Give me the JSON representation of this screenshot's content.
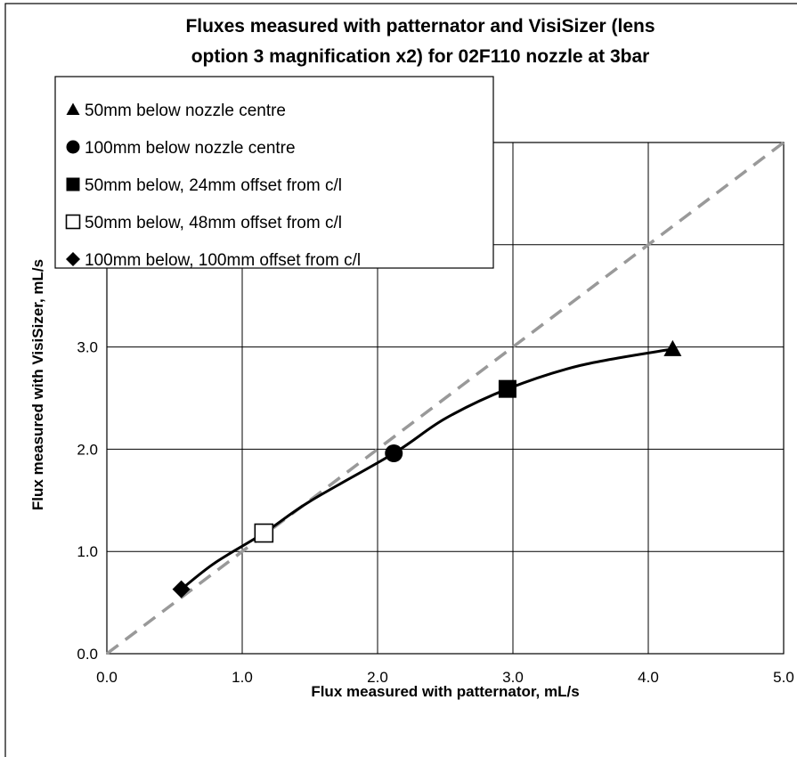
{
  "chart_data": {
    "type": "scatter",
    "title_lines": [
      "Fluxes measured with patternator and VisiSizer (lens",
      "option 3 magnification x2) for 02F110 nozzle at 3bar"
    ],
    "xlabel": "Flux measured with patternator, mL/s",
    "ylabel": "Flux measured with VisiSizer, mL/s",
    "xlim": [
      0,
      5
    ],
    "ylim": [
      0,
      5
    ],
    "x_ticks": [
      "0.0",
      "1.0",
      "2.0",
      "3.0",
      "4.0",
      "5.0"
    ],
    "y_ticks": [
      "0.0",
      "1.0",
      "2.0",
      "3.0"
    ],
    "grid": true,
    "legend_position": "top-left",
    "series": [
      {
        "name": "50mm below nozzle centre",
        "marker": "triangle",
        "x": [
          4.18
        ],
        "y": [
          2.98
        ]
      },
      {
        "name": "100mm below nozzle centre",
        "marker": "circle",
        "x": [
          2.12
        ],
        "y": [
          1.96
        ]
      },
      {
        "name": "50mm below, 24mm offset from c/l",
        "marker": "square",
        "x": [
          2.96
        ],
        "y": [
          2.59
        ]
      },
      {
        "name": "50mm below, 48mm offset from c/l",
        "marker": "open-square",
        "x": [
          1.16
        ],
        "y": [
          1.18
        ]
      },
      {
        "name": "100mm below, 100mm offset from c/l",
        "marker": "diamond",
        "x": [
          0.55
        ],
        "y": [
          0.63
        ]
      }
    ],
    "trend_curve": {
      "style": "solid",
      "color": "#000000",
      "x": [
        0.55,
        0.8,
        1.16,
        1.5,
        2.12,
        2.5,
        2.96,
        3.5,
        4.18
      ],
      "y": [
        0.63,
        0.89,
        1.18,
        1.49,
        1.96,
        2.3,
        2.59,
        2.82,
        2.98
      ]
    },
    "reference_line": {
      "style": "dashed",
      "color": "#999999",
      "x": [
        0,
        5
      ],
      "y": [
        0,
        5
      ]
    }
  }
}
